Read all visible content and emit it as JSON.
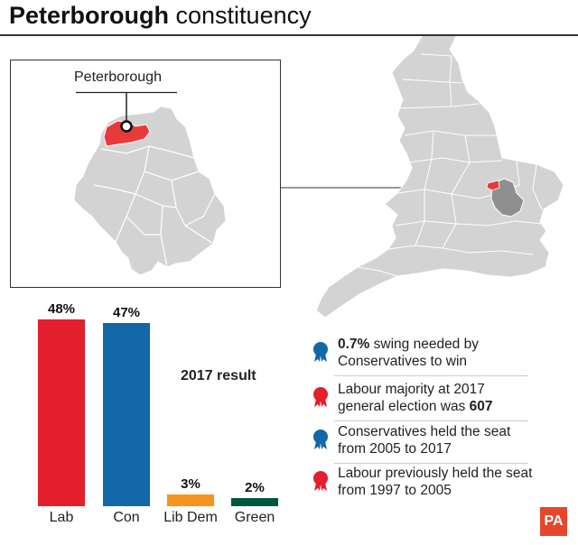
{
  "title": {
    "bold": "Peterborough",
    "rest": " constituency"
  },
  "inset": {
    "label": "Peterborough"
  },
  "chart_data": {
    "type": "bar",
    "title": "2017 result",
    "categories": [
      "Lab",
      "Con",
      "Lib Dem",
      "Green"
    ],
    "values": [
      48,
      47,
      3,
      2
    ],
    "value_labels": [
      "48%",
      "47%",
      "3%",
      "2%"
    ],
    "colors": [
      "#e31e2d",
      "#1268a8",
      "#f7941d",
      "#00573f"
    ],
    "unit": "%",
    "ylim": [
      0,
      48
    ]
  },
  "facts": [
    {
      "icon": "blue-rosette-icon",
      "color": "#1268a8",
      "pre": "",
      "bold": "0.7%",
      "post": " swing needed by Conservatives to win"
    },
    {
      "icon": "red-rosette-icon",
      "color": "#e31e2d",
      "pre": "Labour majority at 2017 general election was ",
      "bold": "607",
      "post": ""
    },
    {
      "icon": "blue-rosette-icon",
      "color": "#1268a8",
      "pre": "Conservatives held the seat from 2005 to 2017",
      "bold": "",
      "post": ""
    },
    {
      "icon": "red-rosette-icon",
      "color": "#e31e2d",
      "pre": "Labour previously held the seat from 1997 to 2005",
      "bold": "",
      "post": ""
    }
  ],
  "logo": {
    "text": "PA"
  },
  "colors": {
    "map_fill": "#d3d3d3",
    "county_fill": "#8f8f8f",
    "highlight": "#e83a3a",
    "lines": "#ffffff"
  }
}
